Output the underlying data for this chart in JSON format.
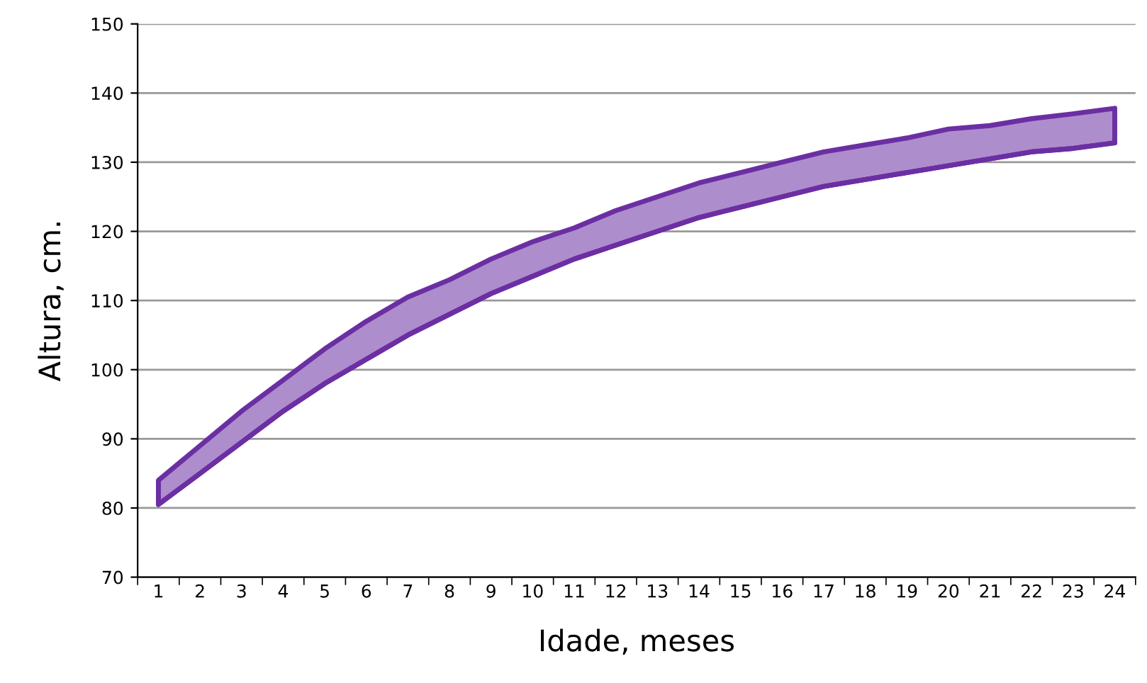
{
  "chart_data": {
    "type": "line",
    "xlabel": "Idade, meses",
    "ylabel": "Altura, cm.",
    "categories": [
      "1",
      "2",
      "3",
      "4",
      "5",
      "6",
      "7",
      "8",
      "9",
      "10",
      "11",
      "12",
      "13",
      "14",
      "15",
      "16",
      "17",
      "18",
      "19",
      "20",
      "21",
      "22",
      "23",
      "24"
    ],
    "series": [
      {
        "color": "#6b2fa3",
        "values": [
          80.5,
          85,
          89.5,
          94,
          98,
          101.5,
          105,
          108,
          111,
          113.5,
          116,
          118,
          120,
          122,
          123.5,
          125,
          126.5,
          127.5,
          128.5,
          129.5,
          130.5,
          131.5,
          132,
          132.8
        ],
        "upper": [
          84,
          89,
          94,
          98.5,
          103,
          107,
          110.5,
          113,
          116,
          118.5,
          120.5,
          123,
          125,
          127,
          128.5,
          130,
          131.5,
          132.5,
          133.5,
          134.8,
          135.3,
          136.3,
          137,
          137.8
        ],
        "lower": [
          80.5,
          85,
          89.5,
          94,
          98,
          101.5,
          105,
          108,
          111,
          113.5,
          116,
          118,
          120,
          122,
          123.5,
          125,
          126.5,
          127.5,
          128.5,
          129.5,
          130.5,
          131.5,
          132,
          132.8
        ]
      }
    ],
    "ylim": [
      70,
      150
    ],
    "yticks": [
      70,
      80,
      90,
      100,
      110,
      120,
      130,
      140,
      150
    ],
    "grid": "y",
    "legend": false
  }
}
